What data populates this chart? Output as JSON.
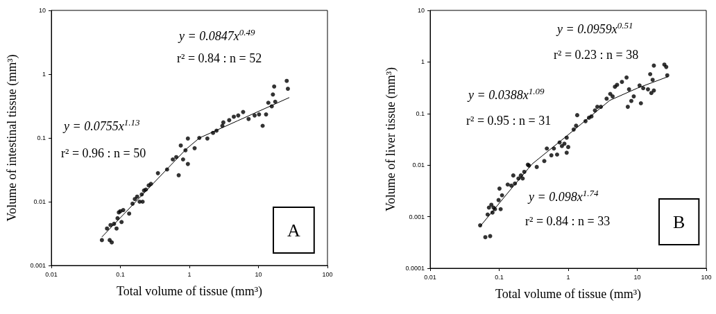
{
  "chart_data": [
    {
      "type": "scatter",
      "xlabel": "Total volume of tissue (mm³)",
      "ylabel": "Volume of intestinal tissue (mm³)",
      "log": "xy",
      "marker": "circle",
      "xlim": [
        0.01,
        100
      ],
      "xticks": [
        0.01,
        0.1,
        1,
        10,
        100
      ],
      "ylim": [
        0.001,
        10
      ],
      "yticks": [
        0.001,
        0.01,
        0.1,
        1,
        10
      ],
      "annotations": [
        "y = 0.0847x$^{0.49}$",
        "r² = 0.84 : n = 52",
        "y = 0.0755x$^{1.13}$",
        "r² = 0.96 : n = 50",
        "A"
      ],
      "series": [
        {
          "color": "#000000",
          "x": [
            0.054,
            0.064,
            0.07,
            0.075,
            0.072,
            0.081,
            0.088,
            0.091,
            0.095,
            0.1,
            0.104,
            0.11,
            0.134,
            0.15,
            0.162,
            0.175,
            0.19,
            0.204,
            0.21,
            0.22,
            0.234,
            0.257,
            0.277,
            0.35,
            0.475,
            0.575,
            0.645,
            0.7,
            0.75,
            0.81,
            0.877,
            0.95,
            0.95,
            1.19,
            1.39,
            1.82,
            2.2,
            2.47,
            3.0,
            3.1,
            3.77,
            4.4,
            5.1,
            6.0,
            7.2,
            8.8,
            10.2,
            11.5,
            12.9,
            13.9,
            15.6,
            16.2,
            16.9,
            17.5,
            25.7,
            26.7
          ],
          "values": [
            0.0025,
            0.0038,
            0.0025,
            0.0023,
            0.0043,
            0.0045,
            0.0038,
            0.0055,
            0.0068,
            0.0071,
            0.0048,
            0.0074,
            0.0065,
            0.0093,
            0.011,
            0.012,
            0.01,
            0.013,
            0.01,
            0.015,
            0.0155,
            0.018,
            0.019,
            0.028,
            0.032,
            0.046,
            0.05,
            0.026,
            0.076,
            0.046,
            0.064,
            0.098,
            0.039,
            0.069,
            0.1,
            0.098,
            0.12,
            0.13,
            0.155,
            0.175,
            0.19,
            0.215,
            0.225,
            0.255,
            0.198,
            0.225,
            0.234,
            0.155,
            0.234,
            0.356,
            0.313,
            0.48,
            0.64,
            0.37,
            0.785,
            0.59
          ]
        },
        {
          "type": "line",
          "marker": "none",
          "color": "#000000",
          "x": [
            0.054,
            0.9,
            1.4,
            5,
            28
          ],
          "values": [
            0.0028,
            0.067,
            0.1,
            0.186,
            0.43
          ]
        }
      ]
    },
    {
      "type": "scatter",
      "xlabel": "Total volume of tissue (mm³)",
      "ylabel": "Volume of liver tissue (mm³)",
      "log": "xy",
      "marker": "circle",
      "xlim": [
        0.01,
        100
      ],
      "xticks": [
        0.01,
        0.1,
        1,
        10,
        100
      ],
      "ylim": [
        0.0001,
        10
      ],
      "yticks": [
        0.0001,
        0.001,
        0.01,
        0.1,
        1,
        10
      ],
      "annotations": [
        "y = 0.0959x$^{0.51}$",
        "r² = 0.23 : n = 38",
        "y = 0.0388x$^{1.09}$",
        "r² = 0.95 : n = 31",
        "y = 0.098x$^{1.74}$",
        "r² = 0.84 : n = 33",
        "B"
      ],
      "series": [
        {
          "color": "#000000",
          "x": [
            0.053,
            0.063,
            0.074,
            0.068,
            0.071,
            0.077,
            0.08,
            0.083,
            0.087,
            0.098,
            0.101,
            0.105,
            0.11,
            0.133,
            0.15,
            0.16,
            0.169,
            0.19,
            0.206,
            0.219,
            0.231,
            0.26,
            0.27,
            0.35,
            0.45,
            0.49,
            0.57,
            0.62,
            0.69,
            0.75,
            0.81,
            0.88,
            0.95,
            1.0,
            0.95,
            1.2,
            1.35,
            1.3,
            1.78,
            2.0,
            2.17,
            2.44,
            2.64,
            2.97,
            3.6,
            4.06,
            4.4,
            4.75,
            5.1,
            6.0,
            7.0,
            7.3,
            7.6,
            8.2,
            8.9,
            10.8,
            11.3,
            12.2,
            14.3,
            15.4,
            16.0,
            16.7,
            17.4,
            17.4,
            24.7,
            26.3,
            27.2
          ],
          "values": [
            0.00068,
            0.0004,
            0.00042,
            0.0011,
            0.0015,
            0.0017,
            0.0012,
            0.0015,
            0.0014,
            0.0021,
            0.0035,
            0.0014,
            0.0026,
            0.0042,
            0.004,
            0.0063,
            0.0044,
            0.0055,
            0.0063,
            0.0055,
            0.0074,
            0.0102,
            0.0098,
            0.0092,
            0.012,
            0.021,
            0.0155,
            0.021,
            0.016,
            0.0275,
            0.0234,
            0.026,
            0.0174,
            0.0224,
            0.034,
            0.049,
            0.093,
            0.058,
            0.071,
            0.083,
            0.088,
            0.115,
            0.135,
            0.135,
            0.194,
            0.24,
            0.215,
            0.33,
            0.36,
            0.41,
            0.5,
            0.135,
            0.295,
            0.175,
            0.215,
            0.35,
            0.158,
            0.31,
            0.295,
            0.58,
            0.25,
            0.45,
            0.85,
            0.28,
            0.89,
            0.8,
            0.55
          ]
        },
        {
          "type": "line",
          "marker": "none",
          "color": "#000000",
          "x": [
            0.053,
            0.15,
            0.3,
            1,
            4,
            10,
            28
          ],
          "values": [
            0.00065,
            0.0035,
            0.0105,
            0.0388,
            0.18,
            0.31,
            0.52
          ]
        }
      ]
    }
  ]
}
